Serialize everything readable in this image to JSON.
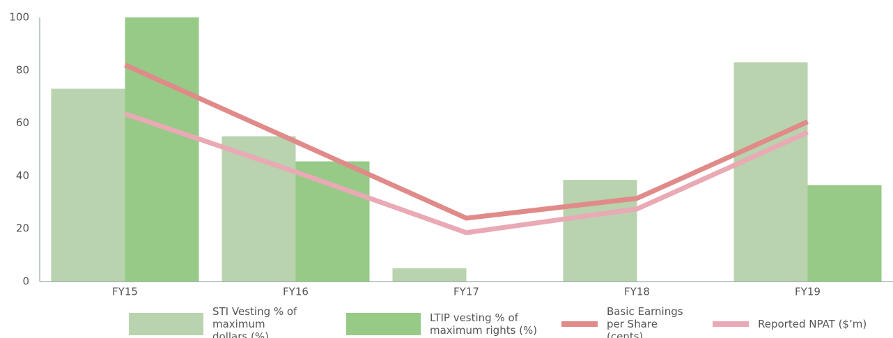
{
  "chart_data": {
    "type": "bar-line",
    "categories": [
      "FY15",
      "FY16",
      "FY17",
      "FY18",
      "FY19"
    ],
    "ylim": [
      0,
      100
    ],
    "yticks": [
      0,
      20,
      40,
      60,
      80,
      100
    ],
    "series": [
      {
        "name": "STI Vesting % of maximum dollars (%)",
        "type": "bar",
        "color": "#b8d3ae",
        "values": [
          73,
          55,
          5,
          38.5,
          83
        ]
      },
      {
        "name": "LTIP vesting % of maximum rights (%)",
        "type": "bar",
        "color": "#96ca86",
        "values": [
          100,
          45.5,
          null,
          null,
          36.5
        ]
      },
      {
        "name": "Basic Earnings per Share (cents)",
        "type": "line",
        "color": "#e08a8a",
        "values": [
          82,
          53,
          24,
          31.5,
          60.5
        ]
      },
      {
        "name": "Reported NPAT ($’m)",
        "type": "line",
        "color": "#e9a9b5",
        "values": [
          63.5,
          41.5,
          18.5,
          27.5,
          56.5
        ]
      }
    ]
  }
}
